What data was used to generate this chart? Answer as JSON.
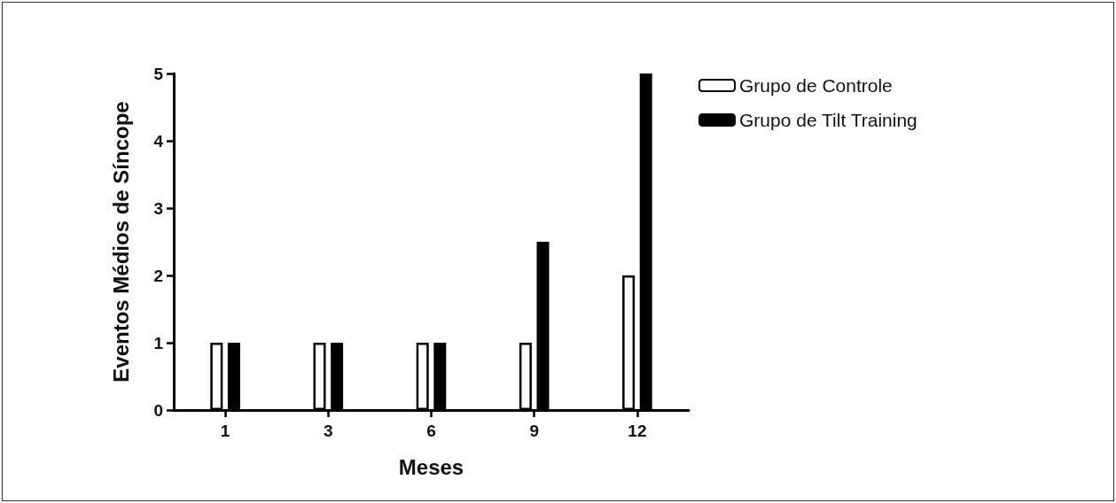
{
  "chart_data": {
    "type": "bar",
    "xlabel": "Meses",
    "ylabel": "Eventos Médios de Síncope",
    "categories": [
      "1",
      "3",
      "6",
      "9",
      "12"
    ],
    "series": [
      {
        "name": "Grupo de Controle",
        "color": "#ffffff",
        "values": [
          1,
          1,
          1,
          1,
          2
        ]
      },
      {
        "name": "Grupo de Tilt Training",
        "color": "#000000",
        "values": [
          1,
          1,
          1,
          2.5,
          5
        ]
      }
    ],
    "ylim": [
      0,
      5
    ],
    "yticks": [
      0,
      1,
      2,
      3,
      4,
      5
    ],
    "grid": false,
    "legend": "top right"
  }
}
